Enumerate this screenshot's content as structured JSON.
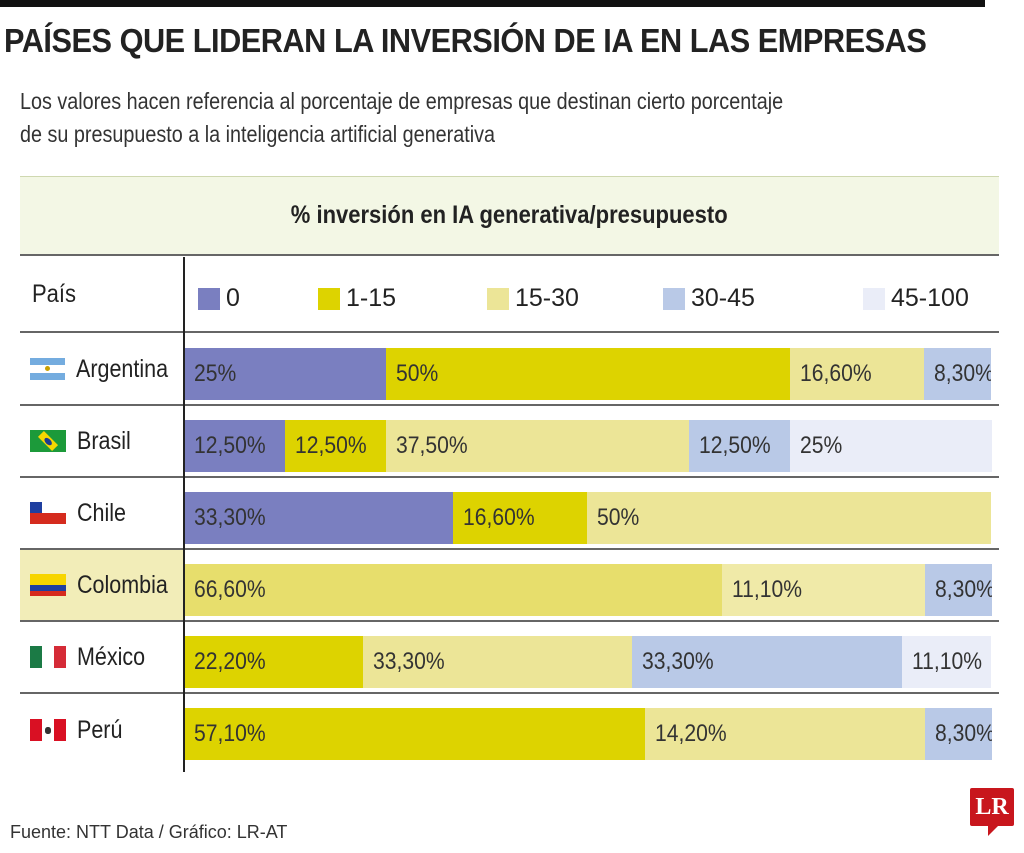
{
  "title": "PAÍSES QUE LIDERAN LA INVERSIÓN DE IA EN LAS EMPRESAS",
  "subtitle_line1": "Los valores hacen referencia al porcentaje de empresas que destinan cierto porcentaje",
  "subtitle_line2": "de su presupuesto a la inteligencia artificial generativa",
  "footer": "Fuente: NTT Data / Gráfico: LR-AT",
  "logo": "LR",
  "chart_data": {
    "type": "bar",
    "orientation": "horizontal",
    "stacked": true,
    "header": "% inversión en IA generativa/presupuesto",
    "row_label_header": "País",
    "legend": [
      {
        "label": "0",
        "color": "#7a7fc0"
      },
      {
        "label": "1-15",
        "color": "#ddd300"
      },
      {
        "label": "15-30",
        "color": "#ece597"
      },
      {
        "label": "30-45",
        "color": "#b9c9e7"
      },
      {
        "label": "45-100",
        "color": "#eaedf8"
      }
    ],
    "highlight": "Colombia",
    "rows": [
      {
        "country": "Argentina",
        "segments": [
          {
            "cat": 0,
            "value": 25,
            "label": "25%"
          },
          {
            "cat": 1,
            "value": 50,
            "label": "50%"
          },
          {
            "cat": 2,
            "value": 16.6,
            "label": "16,60%"
          },
          {
            "cat": 3,
            "value": 8.3,
            "label": "8,30%"
          }
        ]
      },
      {
        "country": "Brasil",
        "segments": [
          {
            "cat": 0,
            "value": 12.5,
            "label": "12,50%"
          },
          {
            "cat": 1,
            "value": 12.5,
            "label": "12,50%"
          },
          {
            "cat": 2,
            "value": 37.5,
            "label": "37,50%"
          },
          {
            "cat": 3,
            "value": 12.5,
            "label": "12,50%"
          },
          {
            "cat": 4,
            "value": 25,
            "label": "25%"
          }
        ]
      },
      {
        "country": "Chile",
        "segments": [
          {
            "cat": 0,
            "value": 33.3,
            "label": "33,30%"
          },
          {
            "cat": 1,
            "value": 16.6,
            "label": "16,60%"
          },
          {
            "cat": 2,
            "value": 50,
            "label": "50%"
          }
        ]
      },
      {
        "country": "Colombia",
        "segments": [
          {
            "cat": 1,
            "value": 66.6,
            "label": "66,60%"
          },
          {
            "cat": 2,
            "value": 11.1,
            "label": "11,10%",
            "fill": true
          },
          {
            "cat": 3,
            "value": 8.3,
            "label": "8,30%"
          }
        ]
      },
      {
        "country": "México",
        "segments": [
          {
            "cat": 1,
            "value": 22.2,
            "label": "22,20%"
          },
          {
            "cat": 2,
            "value": 33.3,
            "label": "33,30%"
          },
          {
            "cat": 3,
            "value": 33.3,
            "label": "33,30%"
          },
          {
            "cat": 4,
            "value": 11.1,
            "label": "11,10%"
          }
        ]
      },
      {
        "country": "Perú",
        "segments": [
          {
            "cat": 1,
            "value": 57.1,
            "label": "57,10%"
          },
          {
            "cat": 2,
            "value": 14.2,
            "label": "14,20%",
            "fill": true
          },
          {
            "cat": 3,
            "value": 8.3,
            "label": "8,30%"
          }
        ]
      }
    ]
  }
}
